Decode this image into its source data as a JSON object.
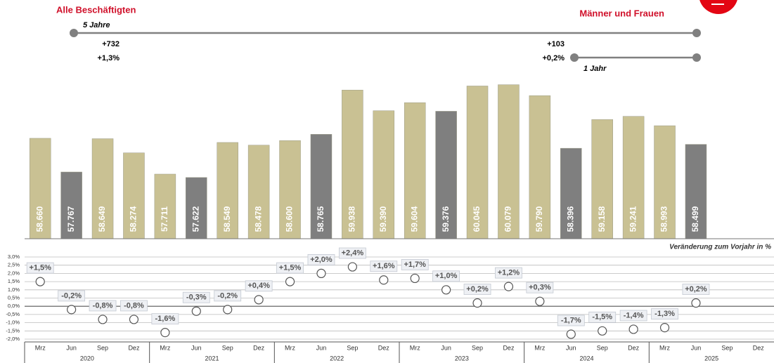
{
  "header": {
    "title_left": "Alle Beschäftigten",
    "title_right": "Männer und Frauen",
    "long_span": "5 Jahre",
    "long_abs": "+732",
    "long_pct": "+1,3%",
    "short_span": "1 Jahr",
    "short_abs": "+103",
    "short_pct": "+0,2%"
  },
  "chart_data": [
    {
      "type": "bar",
      "values": [
        58660,
        57767,
        58649,
        58274,
        57711,
        57622,
        58549,
        58478,
        58600,
        58765,
        59938,
        59390,
        59604,
        59376,
        60045,
        60079,
        59790,
        58396,
        59158,
        59241,
        58993,
        58499,
        null,
        null
      ],
      "value_labels": [
        "58.660",
        "57.767",
        "58.649",
        "58.274",
        "57.711",
        "57.622",
        "58.549",
        "58.478",
        "58.600",
        "58.765",
        "59.938",
        "59.390",
        "59.604",
        "59.376",
        "60.045",
        "60.079",
        "59.790",
        "58.396",
        "59.158",
        "59.241",
        "58.993",
        "58.499",
        null,
        null
      ],
      "colors": [
        "#c9c193",
        "#7f7f7f",
        "#c9c193",
        "#c9c193",
        "#c9c193",
        "#7f7f7f",
        "#c9c193",
        "#c9c193",
        "#c9c193",
        "#7f7f7f",
        "#c9c193",
        "#c9c193",
        "#c9c193",
        "#7f7f7f",
        "#c9c193",
        "#c9c193",
        "#c9c193",
        "#7f7f7f",
        "#c9c193",
        "#c9c193",
        "#c9c193",
        "#7f7f7f",
        null,
        null
      ],
      "ylim": [
        56000,
        60500
      ]
    },
    {
      "type": "scatter",
      "title": "Veränderung zum Vorjahr in %",
      "categories": [
        "Mrz",
        "Jun",
        "Sep",
        "Dez",
        "Mrz",
        "Jun",
        "Sep",
        "Dez",
        "Mrz",
        "Jun",
        "Sep",
        "Dez",
        "Mrz",
        "Jun",
        "Sep",
        "Dez",
        "Mrz",
        "Jun",
        "Sep",
        "Dez",
        "Mrz",
        "Jun",
        "Sep",
        "Dez"
      ],
      "years": [
        "2020",
        "2021",
        "2022",
        "2023",
        "2024",
        "2025"
      ],
      "values": [
        1.5,
        -0.2,
        -0.8,
        -0.8,
        -1.6,
        -0.3,
        -0.2,
        0.4,
        1.5,
        2.0,
        2.4,
        1.6,
        1.7,
        1.0,
        0.2,
        1.2,
        0.3,
        -1.7,
        -1.5,
        -1.4,
        -1.3,
        0.2,
        null,
        null
      ],
      "value_labels": [
        "+1,5%",
        "-0,2%",
        "-0,8%",
        "-0,8%",
        "-1,6%",
        "-0,3%",
        "-0,2%",
        "+0,4%",
        "+1,5%",
        "+2,0%",
        "+2,4%",
        "+1,6%",
        "+1,7%",
        "+1,0%",
        "+0,2%",
        "+1,2%",
        "+0,3%",
        "-1,7%",
        "-1,5%",
        "-1,4%",
        "-1,3%",
        "+0,2%",
        null,
        null
      ],
      "ylim": [
        -2.0,
        3.0
      ],
      "yticks": [
        {
          "value": 3.0,
          "label": "3,0%"
        },
        {
          "value": 2.5,
          "label": "2,5%"
        },
        {
          "value": 2.0,
          "label": "2,0%"
        },
        {
          "value": 1.5,
          "label": "1,5%"
        },
        {
          "value": 1.0,
          "label": "1,0%"
        },
        {
          "value": 0.5,
          "label": "0,5%"
        },
        {
          "value": 0.0,
          "label": "0,0%"
        },
        {
          "value": -0.5,
          "label": "-0,5%"
        },
        {
          "value": -1.0,
          "label": "-1,0%"
        },
        {
          "value": -1.5,
          "label": "-1,5%"
        },
        {
          "value": -2.0,
          "label": "-2,0%"
        }
      ],
      "grid": true
    }
  ]
}
